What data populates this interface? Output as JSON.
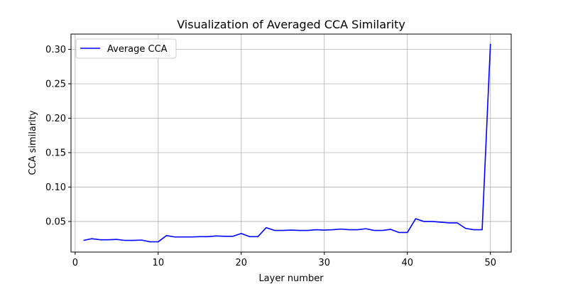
{
  "chart_data": {
    "type": "line",
    "title": "Visualization of Averaged CCA Similarity",
    "xlabel": "Layer number",
    "ylabel": "CCA similarity",
    "xlim": [
      -0.5,
      52.5
    ],
    "ylim": [
      0.0056,
      0.3222
    ],
    "xticks": [
      0,
      10,
      20,
      30,
      40,
      50
    ],
    "yticks": [
      0.05,
      0.1,
      0.15,
      0.2,
      0.25,
      0.3
    ],
    "ytick_labels": [
      "0.05",
      "0.10",
      "0.15",
      "0.20",
      "0.25",
      "0.30"
    ],
    "grid": true,
    "legend": "top-left",
    "series": [
      {
        "name": "Average CCA",
        "color": "#0000ff",
        "x": [
          1,
          2,
          3,
          4,
          5,
          6,
          7,
          8,
          9,
          10,
          11,
          12,
          13,
          14,
          15,
          16,
          17,
          18,
          19,
          20,
          21,
          22,
          23,
          24,
          25,
          26,
          27,
          28,
          29,
          30,
          31,
          32,
          33,
          34,
          35,
          36,
          37,
          38,
          39,
          40,
          41,
          42,
          43,
          44,
          45,
          46,
          47,
          48,
          49,
          50
        ],
        "y": [
          0.0225,
          0.025,
          0.0235,
          0.0235,
          0.024,
          0.0225,
          0.0225,
          0.023,
          0.0205,
          0.0205,
          0.0295,
          0.0275,
          0.0275,
          0.0275,
          0.028,
          0.028,
          0.029,
          0.0285,
          0.0285,
          0.0325,
          0.028,
          0.028,
          0.041,
          0.037,
          0.037,
          0.0375,
          0.037,
          0.037,
          0.038,
          0.0375,
          0.038,
          0.039,
          0.038,
          0.038,
          0.0395,
          0.037,
          0.037,
          0.0385,
          0.034,
          0.034,
          0.054,
          0.05,
          0.05,
          0.049,
          0.048,
          0.048,
          0.04,
          0.038,
          0.038,
          0.308
        ]
      }
    ]
  }
}
